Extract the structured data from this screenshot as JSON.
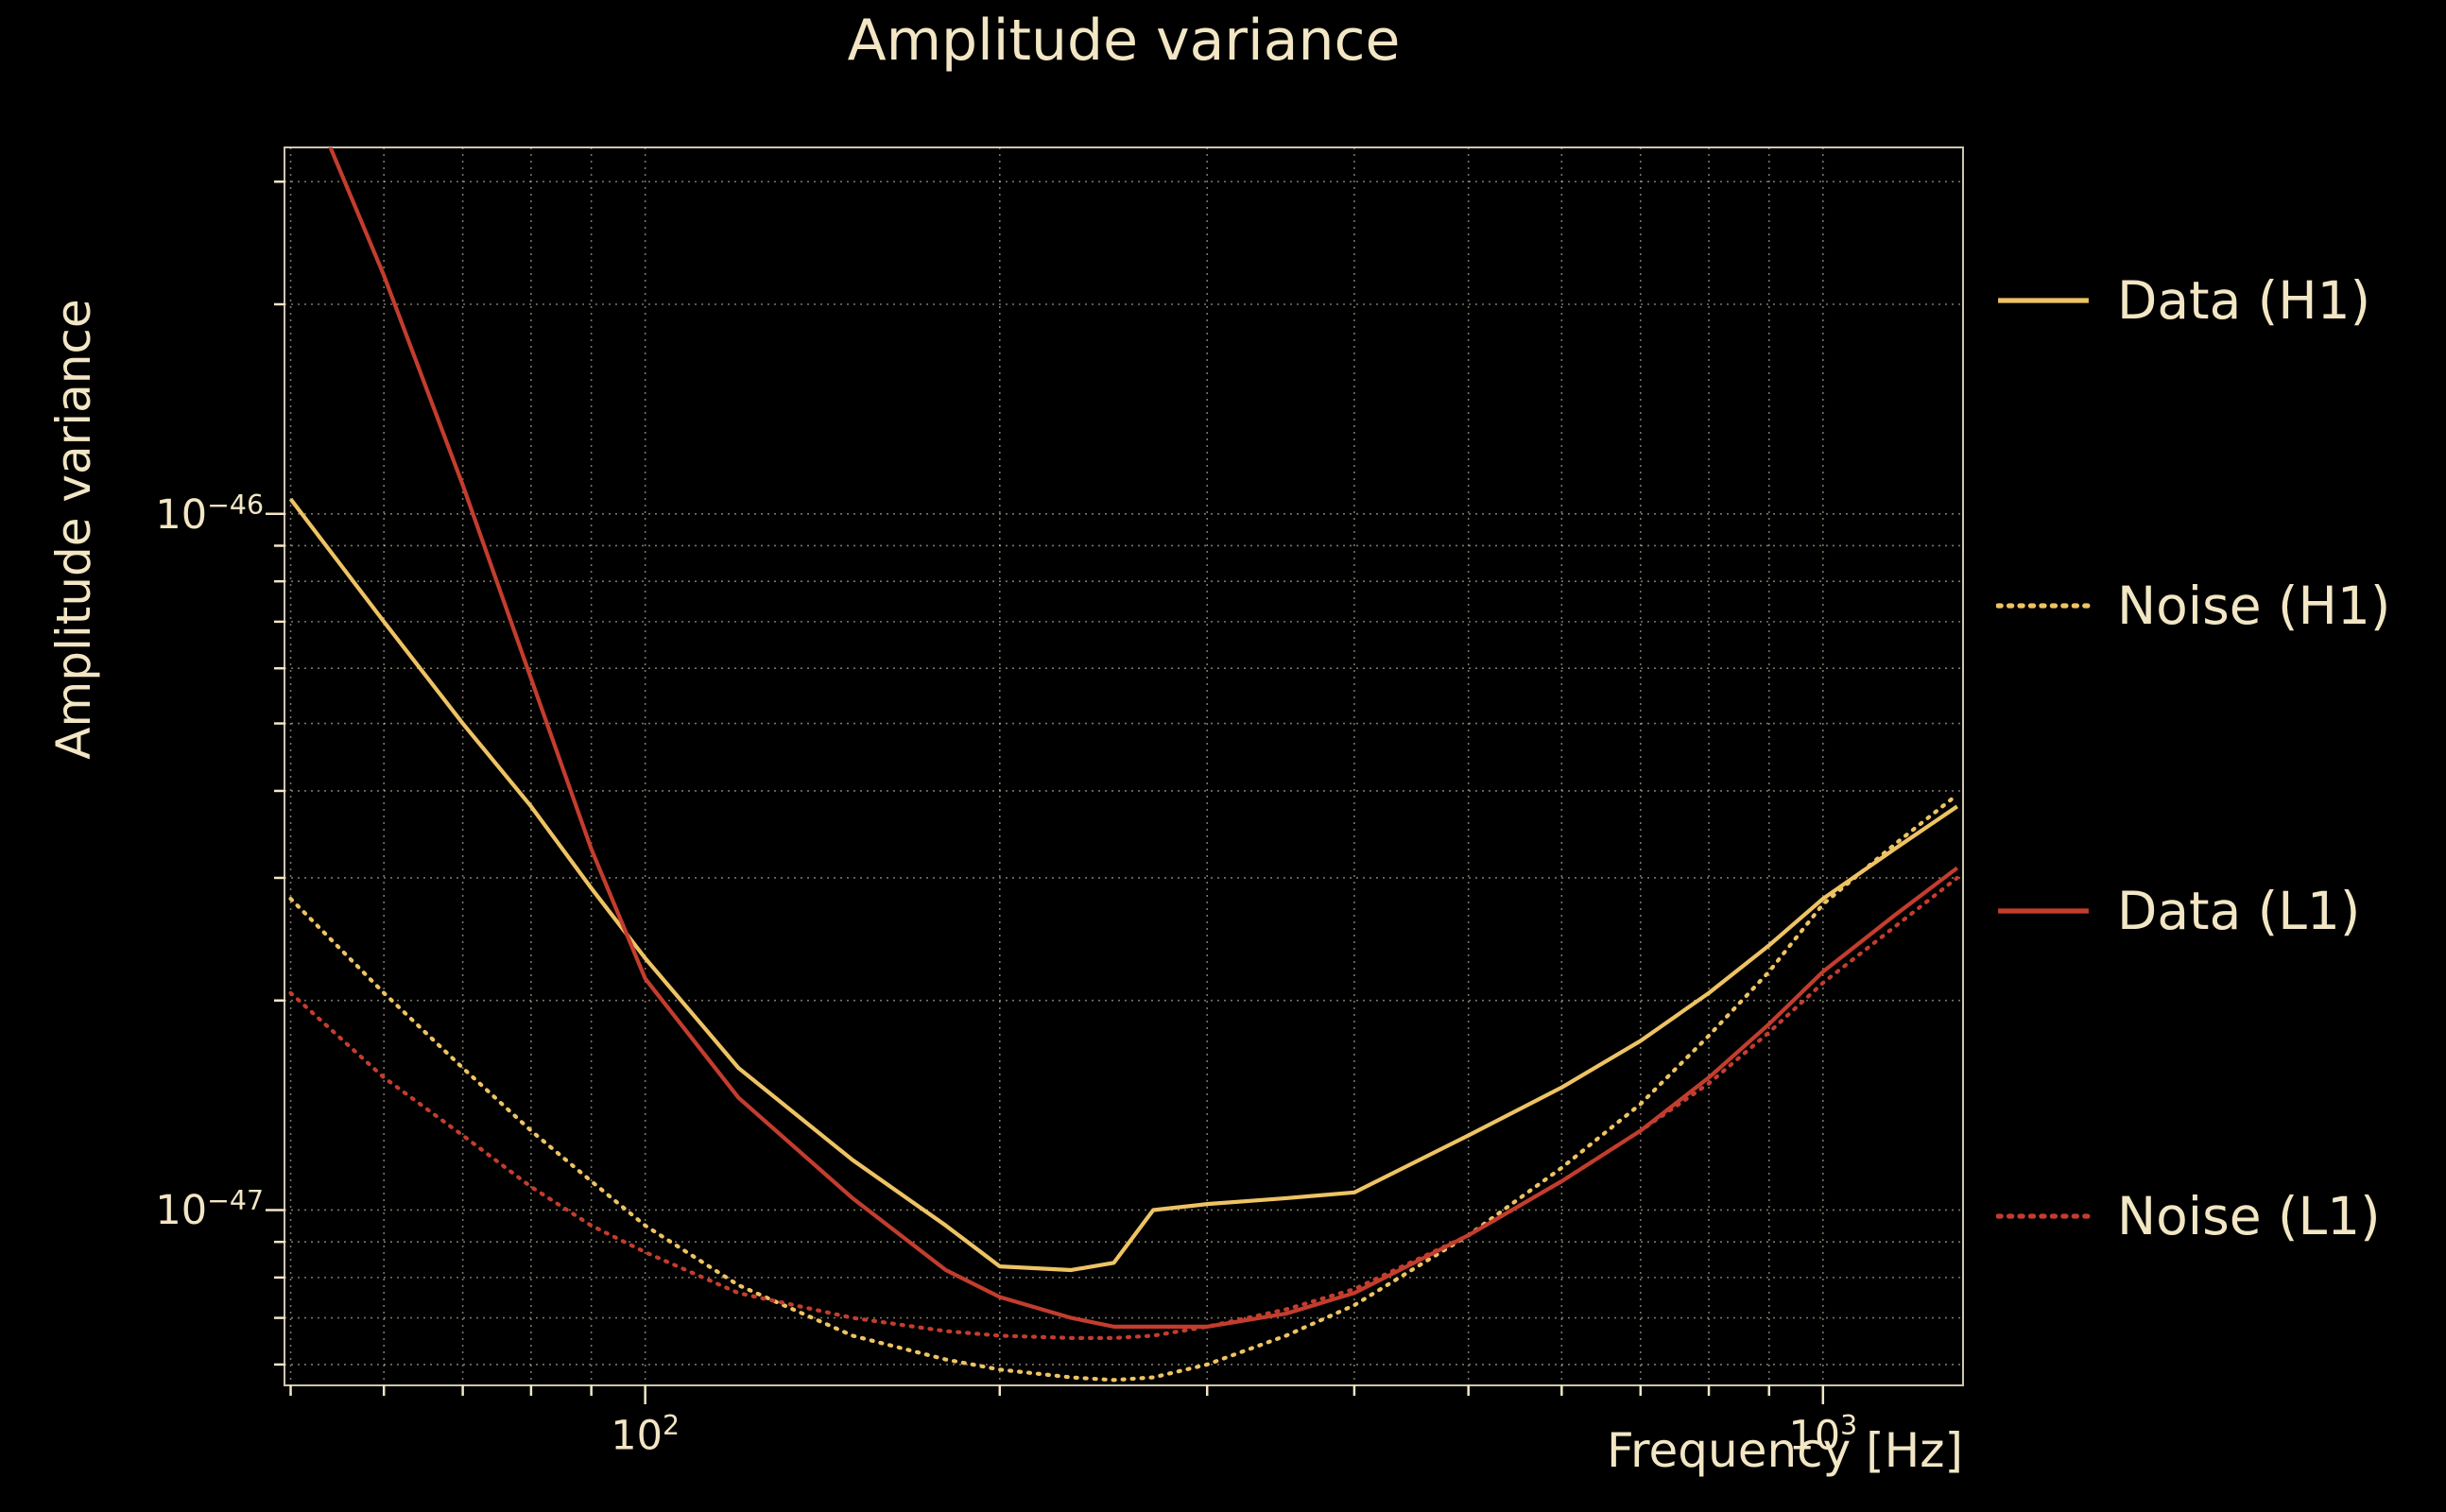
{
  "chart_data": {
    "type": "line",
    "title": "Amplitude variance",
    "xlabel": "Frequency [Hz]",
    "ylabel": "Amplitude variance",
    "x_scale": "log",
    "y_scale": "log",
    "xlim": [
      49.4,
      1315
    ],
    "ylim": [
      5.6e-48,
      3.36e-46
    ],
    "grid": true,
    "legend_position": "right-outside",
    "background": "#000000",
    "text_color": "#f2e6c4",
    "grid_color": "rgba(243,233,205,0.5)",
    "x_ticks": [
      {
        "value": 100,
        "mantissa": "10",
        "exponent": "2"
      },
      {
        "value": 1000,
        "mantissa": "10",
        "exponent": "3"
      }
    ],
    "y_ticks": [
      {
        "value": 1e-46,
        "mantissa": "10",
        "exponent": "−46"
      },
      {
        "value": 1e-47,
        "mantissa": "10",
        "exponent": "−47"
      }
    ],
    "frequencies_hz": [
      50,
      60,
      70,
      80,
      90,
      100,
      120,
      150,
      180,
      200,
      230,
      250,
      270,
      300,
      350,
      400,
      500,
      600,
      700,
      800,
      900,
      1000,
      1150,
      1300
    ],
    "series": [
      {
        "name": "Data (H1)",
        "color": "#eec364",
        "style": "solid",
        "values": [
          1.05e-46,
          7e-47,
          5e-47,
          3.8e-47,
          2.9e-47,
          2.3e-47,
          1.6e-47,
          1.18e-47,
          9.5e-48,
          8.3e-48,
          8.2e-48,
          8.4e-48,
          1e-47,
          1.02e-47,
          1.04e-47,
          1.06e-47,
          1.28e-47,
          1.5e-47,
          1.75e-47,
          2.05e-47,
          2.4e-47,
          2.8e-47,
          3.3e-47,
          3.8e-47
        ]
      },
      {
        "name": "Noise (H1)",
        "color": "#eec364",
        "style": "dotted",
        "values": [
          2.8e-47,
          2.05e-47,
          1.6e-47,
          1.3e-47,
          1.1e-47,
          9.5e-48,
          7.8e-48,
          6.6e-48,
          6.1e-48,
          5.9e-48,
          5.75e-48,
          5.7e-48,
          5.75e-48,
          6e-48,
          6.6e-48,
          7.3e-48,
          9.2e-48,
          1.15e-47,
          1.42e-47,
          1.78e-47,
          2.2e-47,
          2.75e-47,
          3.35e-47,
          3.95e-47
        ]
      },
      {
        "name": "Data (L1)",
        "color": "#c33d2e",
        "style": "solid",
        "values": [
          4.6e-46,
          2.2e-46,
          1.1e-46,
          5.8e-47,
          3.3e-47,
          2.15e-47,
          1.45e-47,
          1.04e-47,
          8.2e-48,
          7.5e-48,
          7e-48,
          6.8e-48,
          6.8e-48,
          6.8e-48,
          7.1e-48,
          7.6e-48,
          9.2e-48,
          1.1e-47,
          1.3e-47,
          1.55e-47,
          1.85e-47,
          2.2e-47,
          2.65e-47,
          3.1e-47
        ]
      },
      {
        "name": "Noise (L1)",
        "color": "#c33d2e",
        "style": "dotted",
        "values": [
          2.05e-47,
          1.55e-47,
          1.28e-47,
          1.08e-47,
          9.5e-48,
          8.7e-48,
          7.6e-48,
          7e-48,
          6.7e-48,
          6.6e-48,
          6.55e-48,
          6.55e-48,
          6.6e-48,
          6.8e-48,
          7.2e-48,
          7.7e-48,
          9.2e-48,
          1.1e-47,
          1.3e-47,
          1.52e-47,
          1.8e-47,
          2.12e-47,
          2.55e-47,
          3e-47
        ]
      }
    ]
  }
}
